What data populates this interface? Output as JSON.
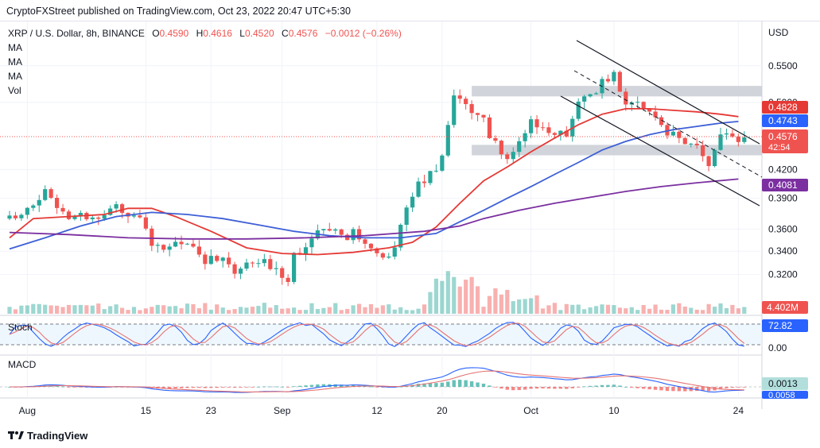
{
  "header": {
    "publisher": "CryptoFXStreet published on TradingView.com, Oct 23, 2022 20:47 UTC+5:30"
  },
  "legend": {
    "symbol": "XRP / U.S. Dollar, 8h, BINANCE",
    "open_label": "O",
    "open": "0.4590",
    "high_label": "H",
    "high": "0.4616",
    "low_label": "L",
    "low": "0.4520",
    "close_label": "C",
    "close": "0.4576",
    "change": "−0.0012 (−0.26%)",
    "indicators": [
      "MA",
      "MA",
      "MA",
      "Vol"
    ]
  },
  "currency_label": "USD",
  "price_badges": {
    "ma50": "0.4828",
    "ma100": "0.4743",
    "last": "0.4576",
    "countdown": "42:54",
    "ma200": "0.4081",
    "volume": "4.402M"
  },
  "stoch": {
    "label": "Stoch",
    "value": "72.82",
    "axis_zero": "0.00"
  },
  "macd": {
    "label": "MACD",
    "value": "0.0013",
    "value2": "0.0058"
  },
  "footer": {
    "brand": "TradingView"
  },
  "colors": {
    "up": "#26a69a",
    "down": "#ef5350",
    "ma50": "#e53935",
    "ma100": "#3d5fd6",
    "ma200": "#7b2fa0",
    "zone": "#c9ccd4",
    "channel": "#131722",
    "stoch_k": "#2962ff",
    "stoch_d": "#e57373",
    "macd_line": "#2962ff",
    "signal_line": "#e57373"
  },
  "chart_data": {
    "type": "candlestick",
    "title": "XRP / U.S. Dollar, 8h, BINANCE",
    "x_ticks": [
      "Aug",
      "15",
      "23",
      "Sep",
      "12",
      "20",
      "Oct",
      "10",
      "24"
    ],
    "y_ticks": [
      "0.5500",
      "0.5000",
      "0.4200",
      "0.3900",
      "0.3600",
      "0.3400",
      "0.3200"
    ],
    "log_scale": true,
    "ylim": [
      0.3,
      0.58
    ],
    "zones": [
      {
        "name": "resistance",
        "from": 0.508,
        "to": 0.522
      },
      {
        "name": "support",
        "from": 0.436,
        "to": 0.448
      }
    ],
    "path": [
      [
        0,
        0.37
      ],
      [
        6,
        0.395
      ],
      [
        10,
        0.375
      ],
      [
        14,
        0.37
      ],
      [
        18,
        0.382
      ],
      [
        22,
        0.372
      ],
      [
        24,
        0.34
      ],
      [
        26,
        0.342
      ],
      [
        30,
        0.35
      ],
      [
        33,
        0.333
      ],
      [
        36,
        0.33
      ],
      [
        38,
        0.322
      ],
      [
        42,
        0.33
      ],
      [
        45,
        0.326
      ],
      [
        47,
        0.318
      ],
      [
        48,
        0.338
      ],
      [
        52,
        0.355
      ],
      [
        58,
        0.355
      ],
      [
        61,
        0.338
      ],
      [
        63,
        0.332
      ],
      [
        65,
        0.345
      ],
      [
        68,
        0.395
      ],
      [
        71,
        0.42
      ],
      [
        73,
        0.43
      ],
      [
        75,
        0.505
      ],
      [
        77,
        0.498
      ],
      [
        80,
        0.475
      ],
      [
        82,
        0.45
      ],
      [
        84,
        0.428
      ],
      [
        86,
        0.452
      ],
      [
        88,
        0.48
      ],
      [
        90,
        0.47
      ],
      [
        92,
        0.455
      ],
      [
        94,
        0.462
      ],
      [
        96,
        0.495
      ],
      [
        98,
        0.51
      ],
      [
        100,
        0.528
      ],
      [
        102,
        0.535
      ],
      [
        104,
        0.502
      ],
      [
        106,
        0.495
      ],
      [
        108,
        0.488
      ],
      [
        110,
        0.47
      ],
      [
        112,
        0.46
      ],
      [
        114,
        0.448
      ],
      [
        116,
        0.442
      ],
      [
        118,
        0.43
      ],
      [
        119,
        0.445
      ],
      [
        121,
        0.462
      ],
      [
        123,
        0.458
      ]
    ],
    "ma50": [
      [
        0,
        0.352
      ],
      [
        4,
        0.37
      ],
      [
        10,
        0.372
      ],
      [
        16,
        0.374
      ],
      [
        20,
        0.38
      ],
      [
        24,
        0.38
      ],
      [
        28,
        0.372
      ],
      [
        34,
        0.358
      ],
      [
        40,
        0.343
      ],
      [
        46,
        0.338
      ],
      [
        52,
        0.337
      ],
      [
        58,
        0.339
      ],
      [
        64,
        0.343
      ],
      [
        68,
        0.348
      ],
      [
        72,
        0.362
      ],
      [
        76,
        0.385
      ],
      [
        80,
        0.408
      ],
      [
        84,
        0.423
      ],
      [
        88,
        0.44
      ],
      [
        92,
        0.456
      ],
      [
        96,
        0.472
      ],
      [
        100,
        0.485
      ],
      [
        104,
        0.492
      ],
      [
        108,
        0.492
      ],
      [
        112,
        0.49
      ],
      [
        116,
        0.488
      ],
      [
        120,
        0.485
      ],
      [
        123,
        0.482
      ]
    ],
    "ma100": [
      [
        0,
        0.342
      ],
      [
        6,
        0.352
      ],
      [
        12,
        0.363
      ],
      [
        18,
        0.372
      ],
      [
        24,
        0.376
      ],
      [
        30,
        0.374
      ],
      [
        36,
        0.37
      ],
      [
        42,
        0.364
      ],
      [
        48,
        0.358
      ],
      [
        54,
        0.354
      ],
      [
        60,
        0.352
      ],
      [
        66,
        0.352
      ],
      [
        72,
        0.356
      ],
      [
        76,
        0.367
      ],
      [
        80,
        0.378
      ],
      [
        84,
        0.39
      ],
      [
        88,
        0.402
      ],
      [
        92,
        0.415
      ],
      [
        96,
        0.428
      ],
      [
        100,
        0.442
      ],
      [
        104,
        0.452
      ],
      [
        108,
        0.46
      ],
      [
        112,
        0.466
      ],
      [
        116,
        0.47
      ],
      [
        120,
        0.474
      ],
      [
        123,
        0.476
      ]
    ],
    "ma200": [
      [
        0,
        0.357
      ],
      [
        10,
        0.355
      ],
      [
        20,
        0.352
      ],
      [
        30,
        0.351
      ],
      [
        40,
        0.351
      ],
      [
        50,
        0.352
      ],
      [
        60,
        0.354
      ],
      [
        70,
        0.358
      ],
      [
        76,
        0.363
      ],
      [
        80,
        0.37
      ],
      [
        86,
        0.378
      ],
      [
        92,
        0.385
      ],
      [
        98,
        0.391
      ],
      [
        104,
        0.397
      ],
      [
        110,
        0.402
      ],
      [
        116,
        0.406
      ],
      [
        123,
        0.41
      ]
    ]
  }
}
